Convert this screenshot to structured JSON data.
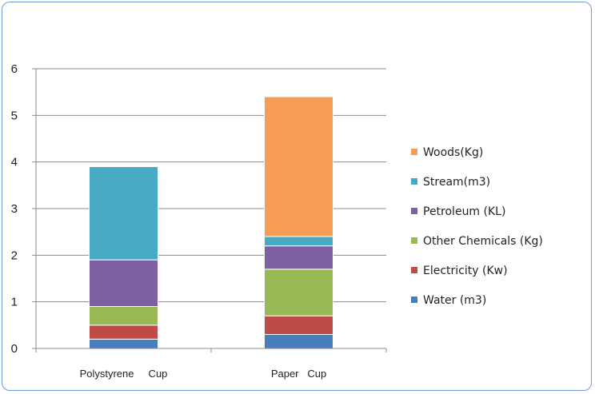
{
  "chart_data": {
    "type": "bar",
    "stacked": true,
    "title": "",
    "xlabel": "",
    "ylabel": "",
    "ylim": [
      0,
      6
    ],
    "yticks": [
      0,
      1,
      2,
      3,
      4,
      5,
      6
    ],
    "grid": true,
    "legend_position": "right",
    "categories": [
      "Polystyrene     Cup",
      "Paper   Cup"
    ],
    "series": [
      {
        "name": "Water (m3)",
        "color": "#4a7ebb",
        "values": [
          0.2,
          0.3
        ]
      },
      {
        "name": "Electricity (Kw)",
        "color": "#be4b48",
        "values": [
          0.3,
          0.4
        ]
      },
      {
        "name": "Other Chemicals (Kg)",
        "color": "#98b954",
        "values": [
          0.4,
          1.0
        ]
      },
      {
        "name": "Petroleum (KL)",
        "color": "#7d60a0",
        "values": [
          1.0,
          0.5
        ]
      },
      {
        "name": "Stream(m3)",
        "color": "#46aac5",
        "values": [
          2.0,
          0.2
        ]
      },
      {
        "name": "Woods(Kg)",
        "color": "#f59d56",
        "values": [
          0.0,
          3.0
        ]
      }
    ]
  }
}
